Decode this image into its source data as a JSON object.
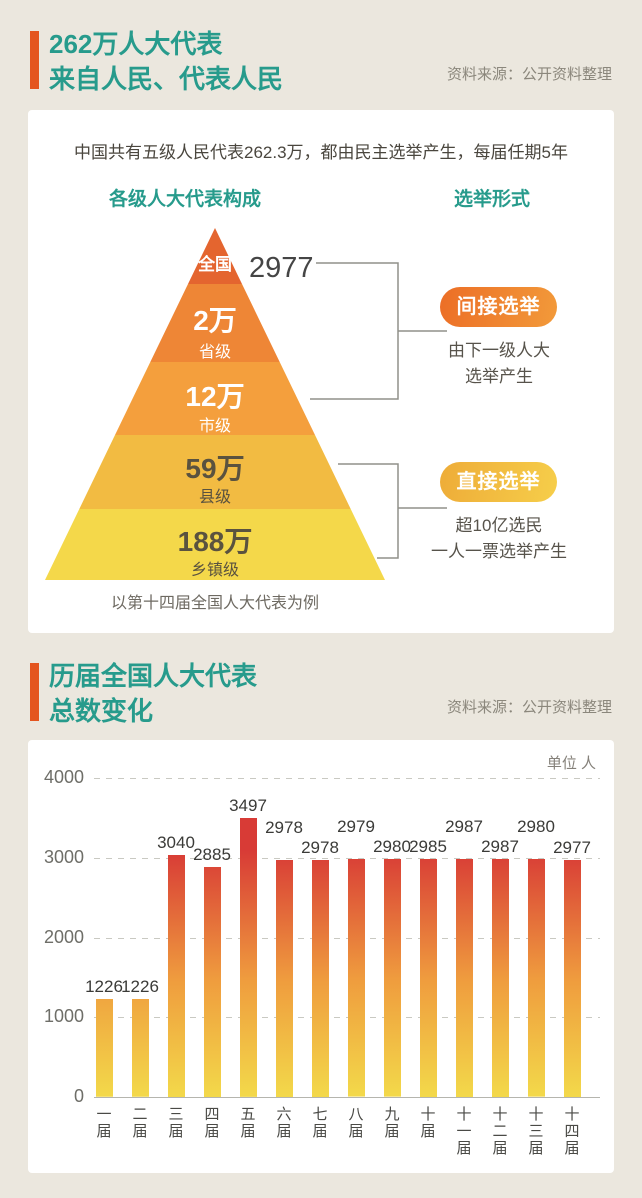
{
  "page": {
    "background": "#ebe7de",
    "teal": "#279b8c",
    "accent_orange": "#e4551f"
  },
  "section1": {
    "title_lines": [
      "262万人大代表",
      "来自人民、代表人民"
    ],
    "source": "资料来源：公开资料整理",
    "card": {
      "intro": "中国共有五级人民代表262.3万，都由民主选举产生，每届任期5年",
      "left_heading": "各级人大代表构成",
      "right_heading": "选举形式",
      "pyramid": {
        "levels": [
          {
            "label": "全国",
            "value": "2977",
            "color": "#e4652f",
            "text_color": "#ffffff"
          },
          {
            "value": "2万",
            "label": "省级",
            "color": "#ee8636",
            "text_color": "#ffffff"
          },
          {
            "value": "12万",
            "label": "市级",
            "color": "#f49f3d",
            "text_color": "#ffffff"
          },
          {
            "value": "59万",
            "label": "县级",
            "color": "#f2bb42",
            "text_color": "#5a523f"
          },
          {
            "value": "188万",
            "label": "乡镇级",
            "color": "#f4d84a",
            "text_color": "#5a523f"
          }
        ],
        "caption": "以第十四届全国人大代表为例"
      },
      "election_groups": [
        {
          "badge": "间接选举",
          "desc_lines": [
            "由下一级人大",
            "选举产生"
          ],
          "badge_colors": [
            "#ec6e26",
            "#f29a3a"
          ]
        },
        {
          "badge": "直接选举",
          "desc_lines": [
            "超10亿选民",
            "一人一票选举产生"
          ],
          "badge_colors": [
            "#eeac38",
            "#f6ce4a"
          ]
        }
      ]
    }
  },
  "section2": {
    "title_lines": [
      "历届全国人大代表",
      "总数变化"
    ],
    "source": "资料来源：公开资料整理",
    "unit_label": "单位 人"
  },
  "chart_data": {
    "type": "bar",
    "title": "历届全国人大代表总数变化",
    "ylabel": "人",
    "categories": [
      "一届",
      "二届",
      "三届",
      "四届",
      "五届",
      "六届",
      "七届",
      "八届",
      "九届",
      "十届",
      "十一届",
      "十二届",
      "十三届",
      "十四届"
    ],
    "values": [
      1226,
      1226,
      3040,
      2885,
      3497,
      2978,
      2978,
      2979,
      2980,
      2985,
      2987,
      2987,
      2980,
      2977
    ],
    "label_raised": [
      0,
      0,
      0,
      0,
      0,
      1,
      0,
      1,
      0,
      0,
      1,
      0,
      1,
      0
    ],
    "ylim": [
      0,
      4000
    ],
    "yticks": [
      0,
      1000,
      2000,
      3000,
      4000
    ],
    "grid": "dashed-horizontal",
    "legend": "none",
    "bar_gradient_bottom_to_top": [
      "#f3d94a",
      "#ef9c3e",
      "#d83b36"
    ]
  }
}
